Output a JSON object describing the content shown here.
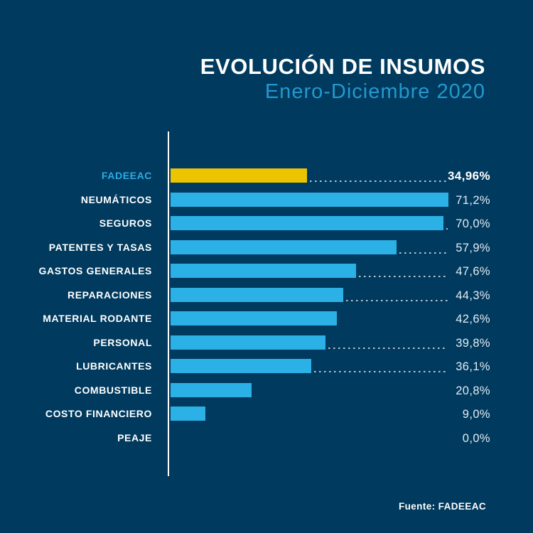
{
  "header": {
    "title": "EVOLUCIÓN DE INSUMOS",
    "subtitle": "Enero-Diciembre 2020"
  },
  "footer": {
    "source_label": "Fuente: FADEEAC"
  },
  "colors": {
    "background": "#003A5E",
    "bar": "#2BB1E5",
    "highlight_bar": "#ECC500",
    "highlight_label": "#2CACE3",
    "subtitle": "#2498CE",
    "value_text": "#E4ECF2",
    "axis": "#FFFFFF",
    "leader_dots": "rgba(255,255,255,0.7)"
  },
  "chart_data": {
    "type": "bar",
    "orientation": "horizontal",
    "title": "EVOLUCIÓN DE INSUMOS",
    "subtitle": "Enero-Diciembre 2020",
    "source": "Fuente: FADEEAC",
    "unit": "%",
    "xlim": [
      0,
      75
    ],
    "grid": false,
    "legend": false,
    "highlight_index": 0,
    "categories": [
      "FADEEAC",
      "NEUMÁTICOS",
      "SEGUROS",
      "PATENTES Y TASAS",
      "GASTOS GENERALES",
      "REPARACIONES",
      "MATERIAL RODANTE",
      "PERSONAL",
      "LUBRICANTES",
      "COMBUSTIBLE",
      "COSTO FINANCIERO",
      "PEAJE"
    ],
    "values": [
      34.96,
      71.2,
      70.0,
      57.9,
      47.6,
      44.3,
      42.6,
      39.8,
      36.1,
      20.8,
      9.0,
      0.0
    ],
    "value_labels": [
      "34,96%",
      "71,2%",
      "70,0%",
      "57,9%",
      "47,6%",
      "44,3%",
      "42,6%",
      "39,8%",
      "36,1%",
      "20,8%",
      "9,0%",
      "0,0%"
    ],
    "dotted_leaders": [
      true,
      false,
      true,
      true,
      true,
      true,
      false,
      true,
      true,
      false,
      false,
      false
    ]
  }
}
